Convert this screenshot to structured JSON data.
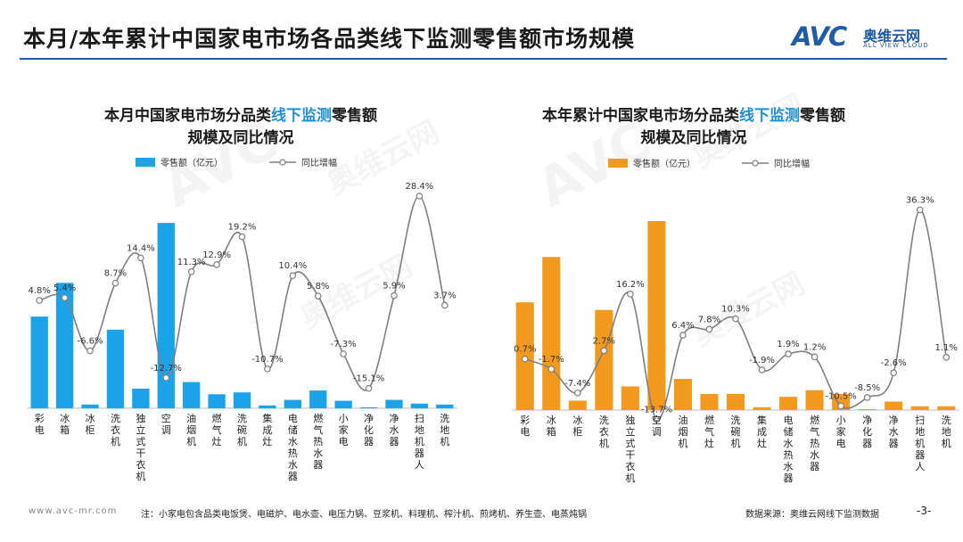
{
  "header": {
    "title": "本月/本年累计中国家电市场各品类线下监测零售额市场规模",
    "logo_avc": "AVC",
    "logo_cn": "奥维云网",
    "logo_en": "ALL VIEW CLOUD"
  },
  "watermark": {
    "cn": "奥维云网",
    "en": "ALL VIEW CLOUD",
    "avc": "AVC"
  },
  "footer": {
    "site": "www.avc-mr.com",
    "note": "注：小家电包含品类电饭煲、电磁炉、电水壶、电压力锅、豆浆机、料理机、榨汁机、煎烤机、养生壶、电蒸炖锅",
    "source": "数据来源：奥维云网线下监测数据",
    "page": "-3-"
  },
  "colors": {
    "monthly_bar": "#1aa3e8",
    "ytd_bar": "#f39a1e",
    "line": "#7f7f7f",
    "accent": "#1f5ba6",
    "title_highlight": "#1f8fd6"
  },
  "chart_data": [
    {
      "type": "bar",
      "title_prefix": "本月中国家电市场分品类",
      "title_highlight": "线下监测",
      "title_suffix": "零售额",
      "title_line2": "规模及同比情况",
      "legend_bar": "零售额（亿元）",
      "legend_line": "同比增幅",
      "categories": [
        "彩电",
        "冰箱",
        "冰柜",
        "洗衣机",
        "独立式干衣机",
        "空调",
        "油烟机",
        "燃气灶",
        "洗碗机",
        "集成灶",
        "电储水热水器",
        "燃气热水器",
        "小家电",
        "净化器",
        "净水器",
        "扫地机器人",
        "洗地机"
      ],
      "series": [
        {
          "name": "零售额（亿元）",
          "kind": "bar",
          "values": [
            49,
            67,
            2,
            42,
            10.5,
            99,
            14,
            7.5,
            8.5,
            1.5,
            4.5,
            9.5,
            4,
            0.5,
            4.5,
            2.5,
            2
          ]
        },
        {
          "name": "同比增幅",
          "kind": "line",
          "values": [
            4.8,
            5.4,
            -6.6,
            8.7,
            14.4,
            -12.7,
            11.3,
            12.9,
            19.2,
            -10.7,
            10.4,
            5.8,
            -7.3,
            -15.1,
            5.9,
            28.4,
            3.7
          ],
          "labels": [
            "4.8%",
            "5.4%",
            "-6.6%",
            "8.7%",
            "14.4%",
            "-12.7%",
            "11.3%",
            "12.9%",
            "19.2%",
            "-10.7%",
            "10.4%",
            "5.8%",
            "-7.3%",
            "-15.1%",
            "5.9%",
            "28.4%",
            "3.7%"
          ]
        }
      ],
      "ylim_bar": [
        0,
        100
      ],
      "ylim_line": [
        -20,
        30
      ],
      "legend_position": "top-center"
    },
    {
      "type": "bar",
      "title_prefix": "本年累计中国家电市场分品类",
      "title_highlight": "线下监测",
      "title_suffix": "零售额",
      "title_line2": "规模及同比情况",
      "legend_bar": "零售额（亿元）",
      "legend_line": "同比增幅",
      "categories": [
        "彩电",
        "冰箱",
        "冰柜",
        "洗衣机",
        "独立式干衣机",
        "空调",
        "油烟机",
        "燃气灶",
        "洗碗机",
        "集成灶",
        "电储水热水器",
        "燃气热水器",
        "小家电",
        "净化器",
        "净水器",
        "扫地机器人",
        "洗地机"
      ],
      "series": [
        {
          "name": "零售额（亿元）",
          "kind": "bar",
          "values": [
            57,
            81,
            5,
            53,
            12.5,
            100,
            16.5,
            8.5,
            8.5,
            1.5,
            7,
            10.5,
            8.5,
            0.5,
            4.5,
            2,
            2
          ]
        },
        {
          "name": "同比增幅",
          "kind": "line",
          "values": [
            0.7,
            -1.7,
            -7.4,
            2.7,
            16.2,
            -13.7,
            6.4,
            7.8,
            10.3,
            -1.9,
            1.9,
            1.2,
            -10.5,
            -8.5,
            -2.6,
            36.3,
            1.1
          ],
          "labels": [
            "0.7%",
            "-1.7%",
            "-7.4%",
            "2.7%",
            "16.2%",
            "-13.7%",
            "6.4%",
            "7.8%",
            "10.3%",
            "-1.9%",
            "1.9%",
            "1.2%",
            "-10.5%",
            "-8.5%",
            "-2.6%",
            "36.3%",
            "1.1%"
          ]
        }
      ],
      "ylim_bar": [
        0,
        100
      ],
      "ylim_line": [
        -20,
        40
      ],
      "legend_position": "top-center"
    }
  ]
}
